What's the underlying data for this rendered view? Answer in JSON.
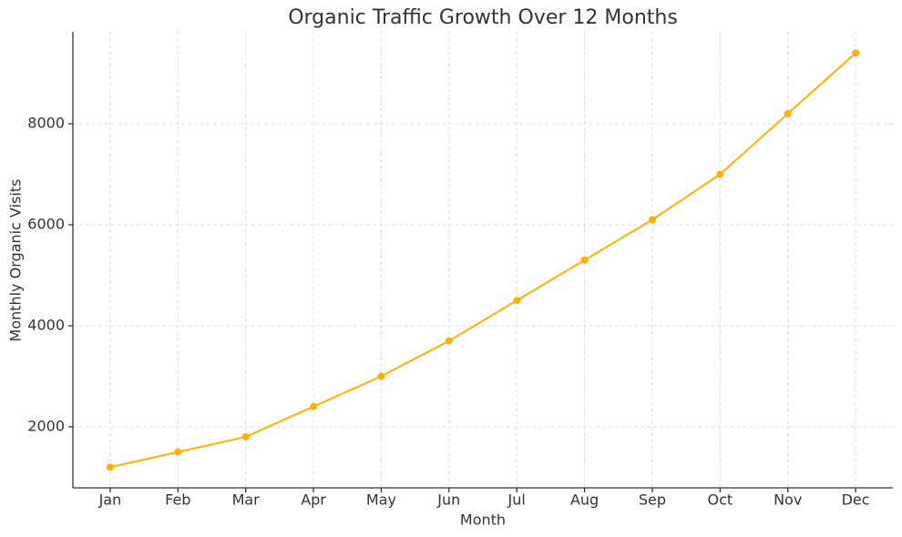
{
  "chart_data": {
    "type": "line",
    "title": "Organic Traffic Growth Over 12 Months",
    "x_label": "Month",
    "y_label": "Monthly Organic Visits",
    "categories": [
      "Jan",
      "Feb",
      "Mar",
      "Apr",
      "May",
      "Jun",
      "Jul",
      "Aug",
      "Sep",
      "Oct",
      "Nov",
      "Dec"
    ],
    "series": [
      {
        "name": "Organic Visits",
        "color": "#ffb000",
        "values": [
          1200,
          1500,
          1800,
          2400,
          3000,
          3700,
          4500,
          5300,
          6100,
          7000,
          8200,
          9400
        ]
      }
    ],
    "ylim": [
      790,
      9820
    ],
    "yticks": [
      2000,
      4000,
      6000,
      8000
    ],
    "grid": true
  }
}
